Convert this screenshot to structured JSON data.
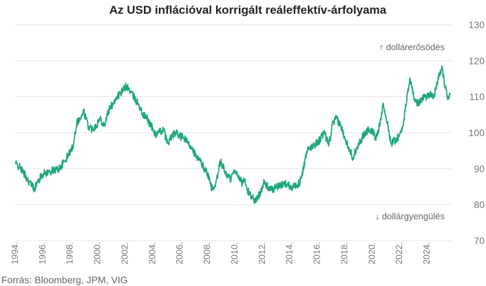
{
  "chart_data": {
    "type": "line",
    "title": "Az USD inflációval korrigált reáleffektív-árfolyama",
    "source": "Forrás: Bloomberg, JPM, VIG",
    "annotation_up": "↑ dollárerősödés",
    "annotation_down": "↓ dollárgyengülés",
    "xlabel": "",
    "ylabel": "",
    "xlim": [
      1994,
      2025.8
    ],
    "ylim": [
      70,
      130
    ],
    "y_ticks": [
      70,
      80,
      90,
      100,
      110,
      120,
      130
    ],
    "y_axis_position": "right",
    "x_ticks": [
      "1994.",
      "1996.",
      "1998.",
      "2000.",
      "2002.",
      "2004.",
      "2006.",
      "2008.",
      "2010.",
      "2012.",
      "2014.",
      "2016.",
      "2018.",
      "2020.",
      "2022.",
      "2024."
    ],
    "grid": true,
    "color": "#1fa67e",
    "series": [
      {
        "x": [
          1994.0,
          1994.3,
          1994.6,
          1994.9,
          1995.2,
          1995.4,
          1995.6,
          1996.0,
          1996.4,
          1996.8,
          1997.2,
          1997.6,
          1997.9,
          1998.2,
          1998.5,
          1998.8,
          1999.0,
          1999.3,
          1999.6,
          1999.9,
          2000.2,
          2000.5,
          2000.8,
          2001.1,
          2001.4,
          2001.7,
          2001.9,
          2002.1,
          2002.4,
          2002.7,
          2003.0,
          2003.3,
          2003.6,
          2003.9,
          2004.2,
          2004.5,
          2004.8,
          2005.1,
          2005.4,
          2005.7,
          2006.0,
          2006.3,
          2006.6,
          2006.9,
          2007.2,
          2007.5,
          2007.8,
          2008.0,
          2008.2,
          2008.4,
          2008.6,
          2008.8,
          2008.95,
          2009.1,
          2009.3,
          2009.5,
          2009.7,
          2009.9,
          2010.1,
          2010.3,
          2010.5,
          2010.7,
          2010.9,
          2011.1,
          2011.3,
          2011.5,
          2011.7,
          2011.9,
          2012.1,
          2012.4,
          2012.7,
          2013.0,
          2013.3,
          2013.6,
          2013.9,
          2014.2,
          2014.5,
          2014.7,
          2014.9,
          2015.1,
          2015.3,
          2015.6,
          2015.9,
          2016.2,
          2016.5,
          2016.8,
          2016.95,
          2017.1,
          2017.4,
          2017.7,
          2018.0,
          2018.3,
          2018.6,
          2018.9,
          2019.2,
          2019.5,
          2019.8,
          2020.1,
          2020.25,
          2020.5,
          2020.8,
          2021.1,
          2021.4,
          2021.7,
          2022.0,
          2022.3,
          2022.5,
          2022.75,
          2022.9,
          2023.1,
          2023.4,
          2023.7,
          2024.0,
          2024.3,
          2024.5,
          2024.7,
          2024.9,
          2025.1,
          2025.3,
          2025.5,
          2025.7
        ],
        "y": [
          91.5,
          90.5,
          89,
          87,
          85.5,
          84.5,
          86,
          88.5,
          89,
          89.5,
          90,
          92,
          94,
          96,
          103,
          104,
          106,
          102,
          101,
          102,
          104,
          102,
          106,
          108,
          110,
          111,
          112,
          113,
          111.5,
          109.5,
          108,
          105,
          104,
          102,
          99.5,
          100,
          101,
          97,
          99,
          100,
          99,
          98.5,
          97,
          96,
          93,
          92,
          90,
          89,
          86,
          84,
          85,
          89,
          92,
          91,
          89,
          88,
          87,
          89,
          89,
          88,
          86,
          87,
          84,
          83,
          82,
          81,
          82,
          84,
          86,
          85,
          84,
          85,
          85,
          86,
          85.5,
          85,
          85.5,
          86,
          88,
          92,
          95,
          96,
          97,
          98,
          100,
          97,
          98,
          102,
          104,
          102,
          99,
          96,
          93,
          96,
          98,
          100,
          101,
          100,
          98,
          101,
          108,
          103,
          97,
          98,
          99,
          103,
          108,
          115,
          113,
          109,
          108,
          110,
          110,
          111,
          110,
          113,
          116,
          118.5,
          113,
          110,
          111
        ]
      }
    ]
  }
}
